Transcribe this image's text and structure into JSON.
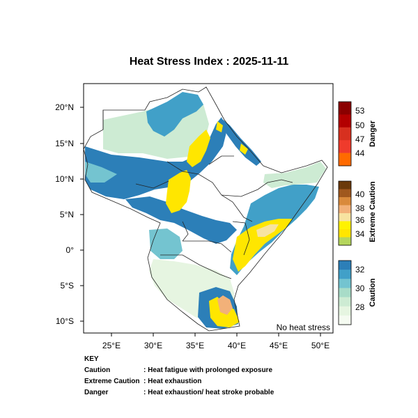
{
  "title": "Heat Stress Index : 2025-11-11",
  "map": {
    "lon_ticks": [
      "25°E",
      "30°E",
      "35°E",
      "40°E",
      "45°E",
      "50°E"
    ],
    "lat_ticks": [
      "20°N",
      "15°N",
      "10°N",
      "5°N",
      "0°",
      "5°S",
      "10°S"
    ],
    "lon_range": [
      22,
      52
    ],
    "lat_range": [
      -12,
      23.5
    ],
    "corner_label": "No heat stress"
  },
  "colorbars": [
    {
      "name": "Danger",
      "ticks": [
        "53",
        "50",
        "47",
        "44"
      ],
      "colors": [
        "#8b0000",
        "#b30000",
        "#d7301f",
        "#ef3b2c",
        "#ff6a00"
      ]
    },
    {
      "name": "Extreme Caution",
      "ticks": [
        "40",
        "38",
        "36",
        "34"
      ],
      "colors": [
        "#6b3a0b",
        "#a0581e",
        "#d98a3c",
        "#f2b179",
        "#f7e3a0",
        "#fff200",
        "#ffe600",
        "#b5d65c"
      ]
    },
    {
      "name": "Caution",
      "ticks": [
        "32",
        "30",
        "28"
      ],
      "colors": [
        "#2c7fb8",
        "#41a0c8",
        "#74c4d0",
        "#a8dcc8",
        "#cdebd3",
        "#e6f5e1",
        "#f5fbf1"
      ]
    }
  ],
  "key": {
    "heading": "KEY",
    "rows": [
      {
        "term": "Caution",
        "desc": ": Heat fatigue with prolonged exposure"
      },
      {
        "term": "Extreme Caution",
        "desc": ": Heat exhaustion"
      },
      {
        "term": "Danger",
        "desc": ": Heat exhaustion/ heat stroke probable"
      }
    ]
  },
  "legend_colors": {
    "caution_dark": "#2c7fb8",
    "caution_mid": "#74c4d0",
    "caution_light": "#cdebd3",
    "extreme_yellow": "#ffe600",
    "extreme_orange": "#f2b179",
    "no_stress": "#ffffff"
  }
}
